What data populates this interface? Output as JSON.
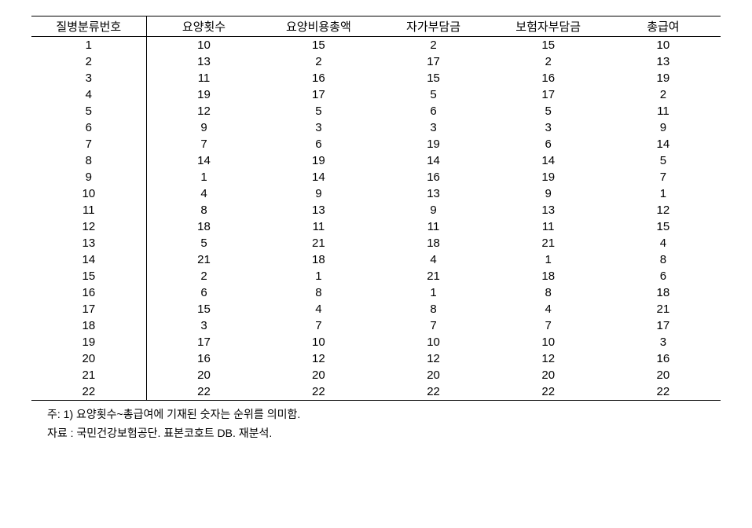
{
  "table": {
    "columns": [
      "질병분류번호",
      "요양횟수",
      "요양비용총액",
      "자가부담금",
      "보험자부담금",
      "총급여"
    ],
    "rows": [
      [
        "1",
        "10",
        "15",
        "2",
        "15",
        "10"
      ],
      [
        "2",
        "13",
        "2",
        "17",
        "2",
        "13"
      ],
      [
        "3",
        "11",
        "16",
        "15",
        "16",
        "19"
      ],
      [
        "4",
        "19",
        "17",
        "5",
        "17",
        "2"
      ],
      [
        "5",
        "12",
        "5",
        "6",
        "5",
        "11"
      ],
      [
        "6",
        "9",
        "3",
        "3",
        "3",
        "9"
      ],
      [
        "7",
        "7",
        "6",
        "19",
        "6",
        "14"
      ],
      [
        "8",
        "14",
        "19",
        "14",
        "14",
        "5"
      ],
      [
        "9",
        "1",
        "14",
        "16",
        "19",
        "7"
      ],
      [
        "10",
        "4",
        "9",
        "13",
        "9",
        "1"
      ],
      [
        "11",
        "8",
        "13",
        "9",
        "13",
        "12"
      ],
      [
        "12",
        "18",
        "11",
        "11",
        "11",
        "15"
      ],
      [
        "13",
        "5",
        "21",
        "18",
        "21",
        "4"
      ],
      [
        "14",
        "21",
        "18",
        "4",
        "1",
        "8"
      ],
      [
        "15",
        "2",
        "1",
        "21",
        "18",
        "6"
      ],
      [
        "16",
        "6",
        "8",
        "1",
        "8",
        "18"
      ],
      [
        "17",
        "15",
        "4",
        "8",
        "4",
        "21"
      ],
      [
        "18",
        "3",
        "7",
        "7",
        "7",
        "17"
      ],
      [
        "19",
        "17",
        "10",
        "10",
        "10",
        "3"
      ],
      [
        "20",
        "16",
        "12",
        "12",
        "12",
        "16"
      ],
      [
        "21",
        "20",
        "20",
        "20",
        "20",
        "20"
      ],
      [
        "22",
        "22",
        "22",
        "22",
        "22",
        "22"
      ]
    ]
  },
  "notes": {
    "line1": "주: 1) 요양횟수~총급여에 기재된 숫자는 순위를 의미함.",
    "line2": "자료 : 국민건강보험공단. 표본코호트 DB. 재분석."
  }
}
